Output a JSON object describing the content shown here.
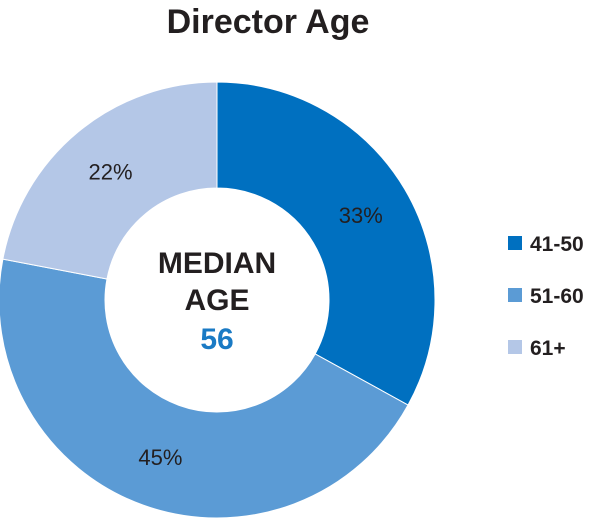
{
  "chart_data": {
    "type": "pie",
    "title": "Director Age",
    "labels": [
      "41-50",
      "51-60",
      "61+"
    ],
    "values": [
      33,
      45,
      22
    ],
    "value_labels": [
      "33%",
      "45%",
      "22%"
    ],
    "colors": [
      "#0070c0",
      "#5b9bd5",
      "#b4c7e7"
    ],
    "donut": true,
    "legend_position": "right",
    "center_label_line1": "MEDIAN",
    "center_label_line2": "AGE",
    "center_value": "56",
    "center_value_color": "#1a7ac4"
  }
}
